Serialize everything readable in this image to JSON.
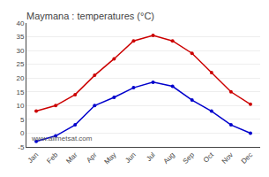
{
  "chart_data": {
    "type": "line",
    "title": "Maymana : temperatures (°C)",
    "categories": [
      "Jan",
      "Feb",
      "Mar",
      "Apr",
      "May",
      "Jun",
      "Jul",
      "Aug",
      "Sep",
      "Oct",
      "Nov",
      "Dec"
    ],
    "series": [
      {
        "color": "#cc0000",
        "marker": "circle",
        "values": [
          8,
          10,
          14,
          21,
          27,
          33.5,
          35.5,
          33.5,
          29,
          22,
          15,
          10.5
        ]
      },
      {
        "color": "#0000cc",
        "marker": "circle",
        "values": [
          -3,
          -1,
          3,
          10,
          13,
          16.5,
          18.5,
          17,
          12,
          8,
          3,
          0
        ]
      }
    ],
    "ylim": [
      -5,
      40
    ],
    "yticks": [
      -5,
      0,
      5,
      10,
      15,
      20,
      25,
      30,
      35,
      40
    ],
    "grid": true,
    "annotations": [
      "www.allmetsat.com"
    ]
  }
}
